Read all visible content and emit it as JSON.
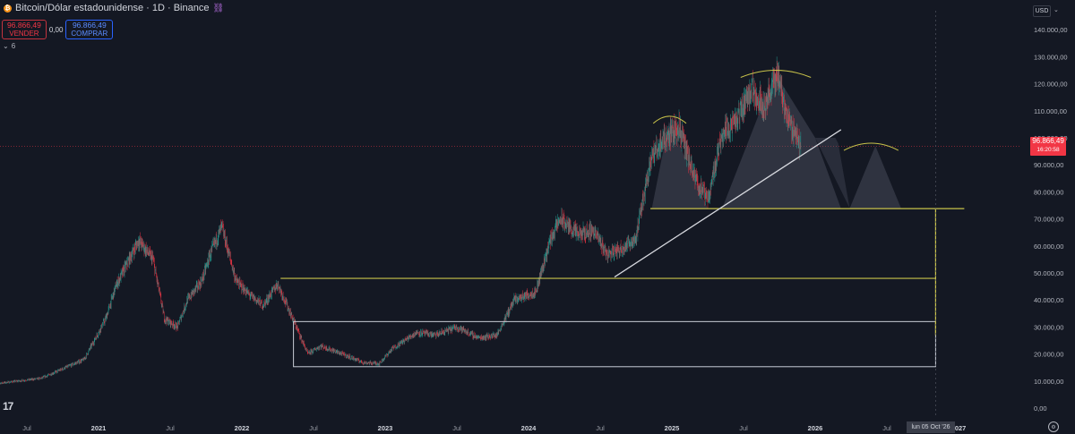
{
  "header": {
    "coin_icon": "bitcoin-icon",
    "title": "Bitcoin/Dólar estadounidense · 1D · Binance",
    "chain_icon": "chain-link-icon"
  },
  "trade": {
    "sell_price": "96.866,49",
    "sell_label": "VENDER",
    "spread": "0,00",
    "buy_price": "96.866,49",
    "buy_label": "COMPRAR"
  },
  "indicators": {
    "count": "6"
  },
  "price_scale": {
    "currency": "USD"
  },
  "last_price": {
    "value": "96.866,49",
    "countdown": "16:20:58"
  },
  "crosshair_date": "lun 05 Oct '26",
  "colors": {
    "up": "#26a69a",
    "down": "#f23645",
    "level": "#c8c24a",
    "box": "#c8ccd6",
    "background": "#141823"
  },
  "chart_data": {
    "type": "candlestick",
    "y_scale": {
      "min": 0,
      "max": 140000,
      "unit": "USD"
    },
    "y_tick_labels": [
      "0,00",
      "10.000,00",
      "20.000,00",
      "30.000,00",
      "40.000,00",
      "50.000,00",
      "60.000,00",
      "70.000,00",
      "80.000,00",
      "90.000,00",
      "100.000,00",
      "110.000,00",
      "120.000,00",
      "130.000,00",
      "140.000,00"
    ],
    "x_tick_labels": [
      {
        "t": 2020.5,
        "label": "Jul"
      },
      {
        "t": 2021.0,
        "label": "2021"
      },
      {
        "t": 2021.5,
        "label": "Jul"
      },
      {
        "t": 2022.0,
        "label": "2022"
      },
      {
        "t": 2022.5,
        "label": "Jul"
      },
      {
        "t": 2023.0,
        "label": "2023"
      },
      {
        "t": 2023.5,
        "label": "Jul"
      },
      {
        "t": 2024.0,
        "label": "2024"
      },
      {
        "t": 2024.5,
        "label": "Jul"
      },
      {
        "t": 2025.0,
        "label": "2025"
      },
      {
        "t": 2025.5,
        "label": "Jul"
      },
      {
        "t": 2026.0,
        "label": "2026"
      },
      {
        "t": 2026.5,
        "label": "Jul"
      },
      {
        "t": 2027.0,
        "label": "2027"
      }
    ],
    "price_path": [
      [
        2020.28,
        9000
      ],
      [
        2020.6,
        11000
      ],
      [
        2020.9,
        18000
      ],
      [
        2021.05,
        33000
      ],
      [
        2021.12,
        45000
      ],
      [
        2021.28,
        62000
      ],
      [
        2021.38,
        55000
      ],
      [
        2021.46,
        33000
      ],
      [
        2021.55,
        30000
      ],
      [
        2021.62,
        40000
      ],
      [
        2021.72,
        47000
      ],
      [
        2021.78,
        57000
      ],
      [
        2021.86,
        67000
      ],
      [
        2021.96,
        47000
      ],
      [
        2022.05,
        42000
      ],
      [
        2022.15,
        38000
      ],
      [
        2022.25,
        46000
      ],
      [
        2022.38,
        30000
      ],
      [
        2022.46,
        20000
      ],
      [
        2022.55,
        23000
      ],
      [
        2022.7,
        20000
      ],
      [
        2022.85,
        16800
      ],
      [
        2022.96,
        16500
      ],
      [
        2023.05,
        22000
      ],
      [
        2023.22,
        28000
      ],
      [
        2023.35,
        27000
      ],
      [
        2023.5,
        30000
      ],
      [
        2023.65,
        26000
      ],
      [
        2023.78,
        27000
      ],
      [
        2023.9,
        40000
      ],
      [
        2024.05,
        43000
      ],
      [
        2024.15,
        62000
      ],
      [
        2024.22,
        70000
      ],
      [
        2024.35,
        64000
      ],
      [
        2024.45,
        66000
      ],
      [
        2024.55,
        57000
      ],
      [
        2024.65,
        59000
      ],
      [
        2024.75,
        63000
      ],
      [
        2024.85,
        92000
      ],
      [
        2024.95,
        100000
      ],
      [
        2025.05,
        104000
      ],
      [
        2025.15,
        86000
      ],
      [
        2025.25,
        77000
      ],
      [
        2025.35,
        102000
      ],
      [
        2025.45,
        106000
      ],
      [
        2025.55,
        118000
      ],
      [
        2025.65,
        112000
      ],
      [
        2025.74,
        124000
      ],
      [
        2025.8,
        108000
      ],
      [
        2025.86,
        102000
      ],
      [
        2025.9,
        96866
      ]
    ],
    "annotations": {
      "horizontal_levels": [
        {
          "value": 73800,
          "t_start": 2024.85,
          "t_end": 2027.04
        },
        {
          "value": 48000,
          "t_start": 2022.27,
          "t_end": 2026.84
        }
      ],
      "range_box": {
        "t_start": 2022.36,
        "t_end": 2026.84,
        "y_low": 15300,
        "y_high": 32000
      },
      "trendline": {
        "from": [
          2024.6,
          48500
        ],
        "to": [
          2026.18,
          103000
        ]
      },
      "projected_price": [
        [
          2026.16,
          98000
        ],
        [
          2026.24,
          74000
        ],
        [
          2026.42,
          97000
        ],
        [
          2026.6,
          74000
        ]
      ],
      "vertical_marker": {
        "t": 2026.84,
        "y_low": 27000,
        "y_high": 73800
      },
      "arcs": [
        {
          "t_start": 2024.87,
          "t_end": 2025.1,
          "y": 108000
        },
        {
          "t_start": 2025.48,
          "t_end": 2025.97,
          "y": 125000
        },
        {
          "t_start": 2026.2,
          "t_end": 2026.58,
          "y": 98000
        }
      ]
    }
  }
}
